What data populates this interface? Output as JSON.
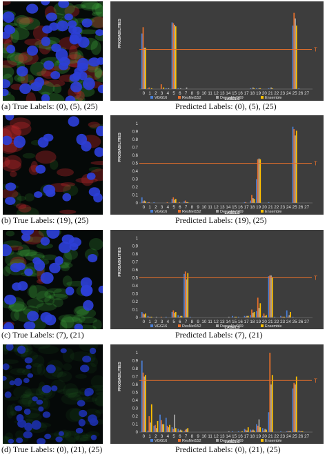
{
  "colors": {
    "VGG16": "#4a7fd6",
    "ResNet152": "#e8702a",
    "DenseNet169": "#a6a6a6",
    "Ensemble": "#ffc000",
    "threshold": "#e8702a",
    "chart_bg": "#3d3d3d",
    "text": "#e6e6e6"
  },
  "panels": [
    {
      "true_caption": "(a) True Labels: (0), (5), (25)",
      "pred_caption": "Predicted Labels: (0), (5), (25)",
      "image_style": "dense"
    },
    {
      "true_caption": "(b) True Labels: (19), (25)",
      "pred_caption": "Predicted Labels: (19), (25)",
      "image_style": "red"
    },
    {
      "true_caption": "(c) True Labels: (7), (21)",
      "pred_caption": "Predicted Labels: (7), (21)",
      "image_style": "green"
    },
    {
      "true_caption": "(d) True Labels: (0), (21), (25)",
      "pred_caption": "Predicted Labels: (0), (21), (25)",
      "image_style": "sparse"
    }
  ],
  "chart_data": [
    {
      "type": "bar",
      "xlabel": "LABELS",
      "ylabel": "PROBABILITIES",
      "ylim": [
        0,
        1
      ],
      "yticks": [],
      "categories": [
        "0",
        "1",
        "2",
        "3",
        "4",
        "5",
        "6",
        "7",
        "8",
        "9",
        "10",
        "11",
        "12",
        "13",
        "14",
        "15",
        "16",
        "17",
        "18",
        "19",
        "20",
        "21",
        "22",
        "23",
        "24",
        "25",
        "26",
        "27"
      ],
      "threshold": 0.5,
      "threshold_label": "T",
      "grid": false,
      "legend_position": "bottom",
      "series": [
        {
          "name": "VGG16",
          "values": [
            0.7,
            0.01,
            0,
            0,
            0.01,
            0.84,
            0.01,
            0,
            0,
            0,
            0,
            0,
            0,
            0,
            0,
            0,
            0,
            0,
            0.01,
            0.01,
            0,
            0.01,
            0,
            0,
            0,
            0.8,
            0.01,
            0
          ]
        },
        {
          "name": "ResNet152",
          "values": [
            0.78,
            0.02,
            0,
            0.06,
            0,
            0.83,
            0,
            0,
            0,
            0,
            0,
            0,
            0,
            0,
            0,
            0,
            0,
            0,
            0,
            0,
            0,
            0,
            0,
            0,
            0,
            0.96,
            0,
            0
          ]
        },
        {
          "name": "DenseNet169",
          "values": [
            0.52,
            0,
            0,
            0,
            0.01,
            0.81,
            0.01,
            0.02,
            0,
            0,
            0,
            0,
            0,
            0,
            0,
            0,
            0,
            0,
            0.02,
            0.01,
            0,
            0.02,
            0,
            0,
            0,
            0.89,
            0,
            0
          ]
        },
        {
          "name": "Ensemble",
          "values": [
            0.52,
            0.01,
            0,
            0.02,
            0,
            0.79,
            0,
            0,
            0,
            0,
            0,
            0,
            0,
            0,
            0,
            0,
            0,
            0,
            0.01,
            0.01,
            0,
            0.01,
            0,
            0,
            0,
            0.8,
            0,
            0
          ]
        }
      ]
    },
    {
      "type": "bar",
      "xlabel": "LABELS",
      "ylabel": "PROBABILITIES",
      "ylim": [
        0,
        1
      ],
      "yticks": [
        "0",
        "0.1",
        "0.2",
        "0.3",
        "0.4",
        "0.5",
        "0.6",
        "0.7",
        "0.8",
        "0.9",
        "1"
      ],
      "categories": [
        "0",
        "1",
        "2",
        "3",
        "4",
        "5",
        "6",
        "7",
        "8",
        "9",
        "10",
        "11",
        "12",
        "13",
        "14",
        "15",
        "16",
        "17",
        "18",
        "19",
        "20",
        "21",
        "22",
        "23",
        "24",
        "25",
        "26",
        "27"
      ],
      "threshold": 0.5,
      "threshold_label": "T",
      "grid": false,
      "legend_position": "bottom",
      "series": [
        {
          "name": "VGG16",
          "values": [
            0.07,
            0.01,
            0.01,
            0,
            0,
            0.05,
            0,
            0.02,
            0,
            0,
            0,
            0,
            0,
            0,
            0,
            0,
            0,
            0.01,
            0.03,
            0.3,
            0,
            0.01,
            0,
            0,
            0,
            0.96,
            0,
            0
          ]
        },
        {
          "name": "ResNet152",
          "values": [
            0.02,
            0.01,
            0,
            0,
            0.01,
            0.07,
            0.01,
            0.03,
            0,
            0,
            0,
            0,
            0,
            0,
            0,
            0,
            0,
            0.01,
            0.1,
            0.55,
            0,
            0,
            0,
            0,
            0,
            0.93,
            0,
            0
          ]
        },
        {
          "name": "DenseNet169",
          "values": [
            0.03,
            0,
            0,
            0,
            0,
            0.04,
            0,
            0.01,
            0,
            0,
            0,
            0,
            0,
            0,
            0,
            0,
            0,
            0,
            0.06,
            0.56,
            0,
            0,
            0,
            0,
            0,
            0.85,
            0,
            0
          ]
        },
        {
          "name": "Ensemble",
          "values": [
            0.02,
            0,
            0,
            0,
            0,
            0.05,
            0,
            0.01,
            0,
            0,
            0,
            0,
            0,
            0,
            0,
            0,
            0,
            0,
            0.05,
            0.55,
            0,
            0,
            0,
            0,
            0,
            0.91,
            0,
            0
          ]
        }
      ]
    },
    {
      "type": "bar",
      "xlabel": "LABELS",
      "ylabel": "PROBABILITIES",
      "ylim": [
        0,
        1
      ],
      "yticks": [
        "0",
        "0.1",
        "0.2",
        "0.3",
        "0.4",
        "0.5",
        "0.6",
        "0.7",
        "0.8",
        "0.9",
        "1"
      ],
      "categories": [
        "0",
        "1",
        "2",
        "3",
        "4",
        "5",
        "6",
        "7",
        "8",
        "9",
        "10",
        "11",
        "12",
        "13",
        "14",
        "15",
        "16",
        "17",
        "18",
        "19",
        "20",
        "21",
        "22",
        "23",
        "24",
        "25",
        "26",
        "27"
      ],
      "threshold": 0.5,
      "threshold_label": "T",
      "grid": false,
      "legend_position": "bottom",
      "series": [
        {
          "name": "VGG16",
          "values": [
            0.07,
            0.02,
            0,
            0,
            0.01,
            0.07,
            0.03,
            0.55,
            0.01,
            0,
            0,
            0,
            0,
            0,
            0,
            0.02,
            0.01,
            0.02,
            0.03,
            0.08,
            0.02,
            0.52,
            0.01,
            0.02,
            0.09,
            0.01,
            0,
            0
          ]
        },
        {
          "name": "ResNet152",
          "values": [
            0.05,
            0.01,
            0,
            0.01,
            0,
            0.09,
            0.01,
            0.58,
            0,
            0,
            0,
            0,
            0,
            0,
            0,
            0,
            0,
            0.01,
            0.1,
            0.25,
            0.05,
            0.53,
            0,
            0.01,
            0.01,
            0,
            0,
            0
          ]
        },
        {
          "name": "DenseNet169",
          "values": [
            0.04,
            0.01,
            0.01,
            0,
            0,
            0.06,
            0.02,
            0.48,
            0,
            0,
            0,
            0,
            0,
            0,
            0.01,
            0.01,
            0,
            0.02,
            0.06,
            0.12,
            0.02,
            0.53,
            0,
            0.01,
            0.03,
            0,
            0,
            0
          ]
        },
        {
          "name": "Ensemble",
          "values": [
            0.05,
            0.01,
            0,
            0,
            0,
            0.07,
            0.02,
            0.56,
            0,
            0,
            0,
            0,
            0,
            0,
            0,
            0.01,
            0,
            0.02,
            0.07,
            0.18,
            0.03,
            0.51,
            0,
            0.01,
            0.07,
            0,
            0,
            0
          ]
        }
      ]
    },
    {
      "type": "bar",
      "xlabel": "LABELS",
      "ylabel": "PROBABILITIES",
      "ylim": [
        0,
        1
      ],
      "yticks": [
        "0",
        "0.1",
        "0.2",
        "0.3",
        "0.4",
        "0.5",
        "0.6",
        "0.7",
        "0.8",
        "0.9",
        "1"
      ],
      "categories": [
        "0",
        "1",
        "2",
        "3",
        "4",
        "5",
        "6",
        "7",
        "8",
        "9",
        "10",
        "11",
        "12",
        "13",
        "14",
        "15",
        "16",
        "17",
        "18",
        "19",
        "20",
        "21",
        "22",
        "23",
        "24",
        "25",
        "26",
        "27"
      ],
      "threshold": 0.65,
      "threshold_label": "T",
      "grid": false,
      "legend_position": "bottom",
      "series": [
        {
          "name": "VGG16",
          "values": [
            0.9,
            0.02,
            0.08,
            0.22,
            0.18,
            0.06,
            0.04,
            0.01,
            0,
            0,
            0,
            0,
            0,
            0,
            0,
            0.01,
            0.01,
            0.04,
            0.03,
            0.1,
            0.05,
            0.25,
            0,
            0.01,
            0.01,
            0.55,
            0.02,
            0
          ]
        },
        {
          "name": "ResNet152",
          "values": [
            0.75,
            0.2,
            0.09,
            0.15,
            0.08,
            0.04,
            0.02,
            0.03,
            0,
            0,
            0,
            0,
            0,
            0,
            0,
            0,
            0,
            0.03,
            0.02,
            0.08,
            0.02,
            1.0,
            0,
            0,
            0.01,
            0.62,
            0.01,
            0
          ]
        },
        {
          "name": "DenseNet169",
          "values": [
            0.7,
            0.12,
            0.05,
            0.1,
            0.06,
            0.22,
            0.03,
            0.04,
            0,
            0,
            0,
            0,
            0,
            0,
            0.01,
            0,
            0,
            0.02,
            0.03,
            0.16,
            0.04,
            0.6,
            0,
            0,
            0.01,
            0.6,
            0.01,
            0
          ]
        },
        {
          "name": "Ensemble",
          "values": [
            0.72,
            0.35,
            0.14,
            0.1,
            0.09,
            0.05,
            0.02,
            0.05,
            0,
            0,
            0,
            0,
            0,
            0,
            0,
            0,
            0.01,
            0.06,
            0.02,
            0.06,
            0.03,
            0.72,
            0,
            0,
            0.01,
            0.7,
            0.01,
            0
          ]
        }
      ]
    }
  ]
}
